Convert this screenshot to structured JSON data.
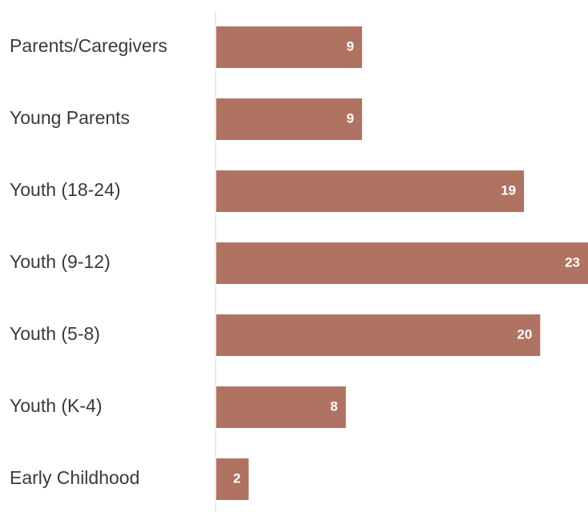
{
  "chart_data": {
    "type": "bar",
    "orientation": "horizontal",
    "categories": [
      "Parents/Caregivers",
      "Young Parents",
      "Youth (18-24)",
      "Youth (9-12)",
      "Youth (5-8)",
      "Youth (K-4)",
      "Early Childhood"
    ],
    "values": [
      9,
      9,
      19,
      23,
      20,
      8,
      2
    ],
    "xlim": [
      0,
      23
    ],
    "grid": false,
    "legend": "none"
  },
  "colors": {
    "bar": "#b07362",
    "axis": "#d9d9d9",
    "label_text": "#3a3a3a",
    "value_text": "#ffffff"
  }
}
